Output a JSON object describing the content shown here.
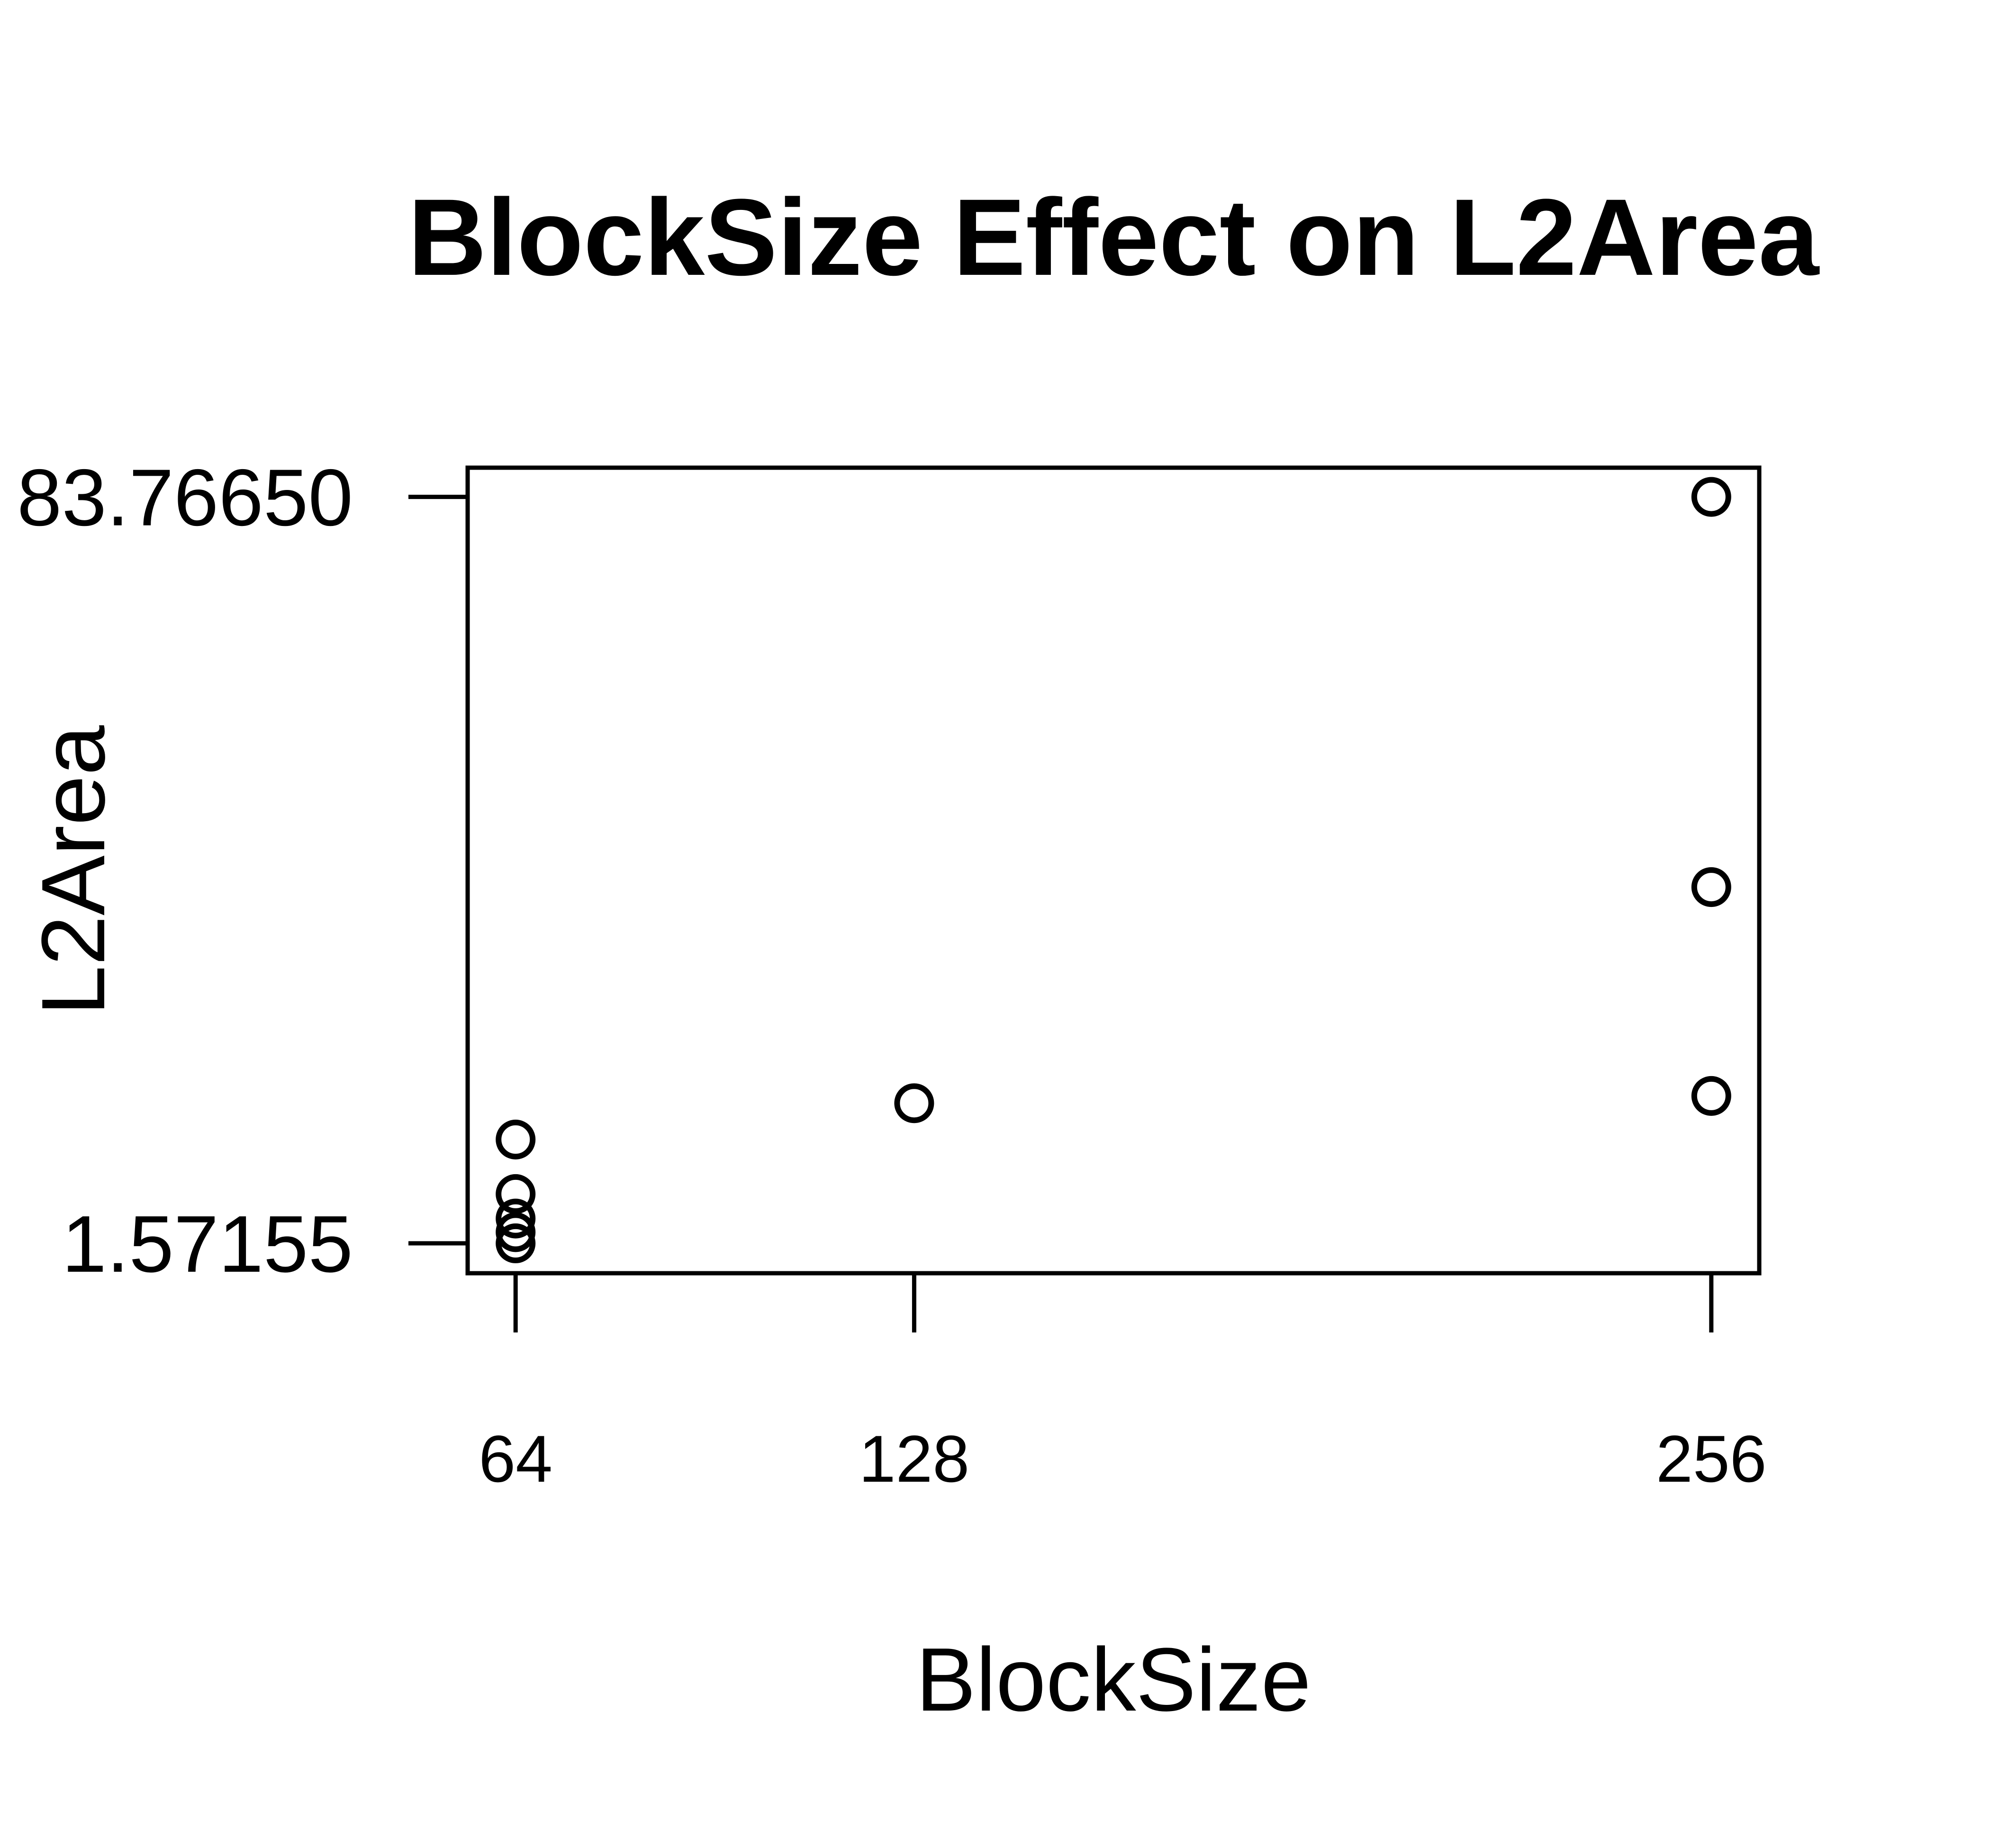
{
  "chart_data": {
    "type": "scatter",
    "title": "BlockSize Effect on L2Area",
    "xlabel": "BlockSize",
    "ylabel": "L2Area",
    "x_ticks": [
      {
        "value": 64,
        "label": "64"
      },
      {
        "value": 128,
        "label": "128"
      },
      {
        "value": 256,
        "label": "256"
      }
    ],
    "y_ticks": [
      {
        "value": 1.57155,
        "label": "1.57155"
      },
      {
        "value": 83.7665,
        "label": "83.76650"
      }
    ],
    "xlim": [
      56.3,
      263.7
    ],
    "ylim": [
      -1.72,
      86.98
    ],
    "grid": false,
    "legend": "none",
    "points": [
      {
        "x": 64,
        "y": 1.57155
      },
      {
        "x": 64,
        "y": 2.8
      },
      {
        "x": 64,
        "y": 4.3
      },
      {
        "x": 64,
        "y": 7.0
      },
      {
        "x": 64,
        "y": 13.0
      },
      {
        "x": 128,
        "y": 17.0
      },
      {
        "x": 256,
        "y": 17.8
      },
      {
        "x": 256,
        "y": 40.8
      },
      {
        "x": 256,
        "y": 83.7665
      }
    ]
  }
}
